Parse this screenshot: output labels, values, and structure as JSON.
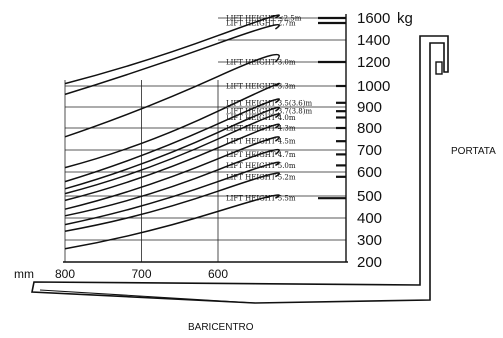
{
  "chart_data": {
    "type": "line",
    "title": "",
    "xlabel": "BARICENTRO",
    "ylabel": "PORTATA",
    "x_unit": "mm",
    "y_unit": "kg",
    "x_ticks": [
      "800",
      "700",
      "600"
    ],
    "y_ticks": [
      "1600",
      "1400",
      "1200",
      "1000",
      "900",
      "800",
      "700",
      "600",
      "500",
      "400",
      "300",
      "200"
    ],
    "ylim": [
      200,
      1600
    ],
    "grid": true,
    "curve_x": [
      800,
      700,
      600,
      525
    ],
    "series": [
      {
        "name": "LIFT HEIGHT ≤2.5m",
        "load": 1600,
        "values": [
          1020,
          1220,
          1440,
          1600
        ]
      },
      {
        "name": "LIFT HEIGHT 2.7m",
        "load": 1500,
        "values": [
          960,
          1160,
          1370,
          1500
        ]
      },
      {
        "name": "LIFT HEIGHT 3.0m",
        "load": 1200,
        "values": [
          760,
          900,
          1080,
          1200
        ]
      },
      {
        "name": "LIFT HEIGHT 3.3m",
        "load": 1000,
        "values": [
          620,
          730,
          880,
          1000
        ]
      },
      {
        "name": "LIFT HEIGHT 3.5(3.6)m",
        "load": 920,
        "values": [
          560,
          680,
          820,
          920
        ]
      },
      {
        "name": "LIFT HEIGHT 3.7(3.8)m",
        "load": 880,
        "values": [
          530,
          640,
          780,
          880
        ]
      },
      {
        "name": "LIFT HEIGHT 4.0m",
        "load": 850,
        "values": [
          510,
          610,
          750,
          850
        ]
      },
      {
        "name": "LIFT HEIGHT 4.3m",
        "load": 800,
        "values": [
          480,
          580,
          710,
          800
        ]
      },
      {
        "name": "LIFT HEIGHT 4.5m",
        "load": 740,
        "values": [
          440,
          540,
          660,
          740
        ]
      },
      {
        "name": "LIFT HEIGHT 4.7m",
        "load": 680,
        "values": [
          410,
          500,
          610,
          680
        ]
      },
      {
        "name": "LIFT HEIGHT 5.0m",
        "load": 630,
        "values": [
          370,
          460,
          560,
          630
        ]
      },
      {
        "name": "LIFT HEIGHT 5.2m",
        "load": 580,
        "values": [
          340,
          420,
          520,
          580
        ]
      },
      {
        "name": "LIFT HEIGHT 5.5m",
        "load": 490,
        "values": [
          260,
          340,
          430,
          490
        ]
      }
    ]
  }
}
